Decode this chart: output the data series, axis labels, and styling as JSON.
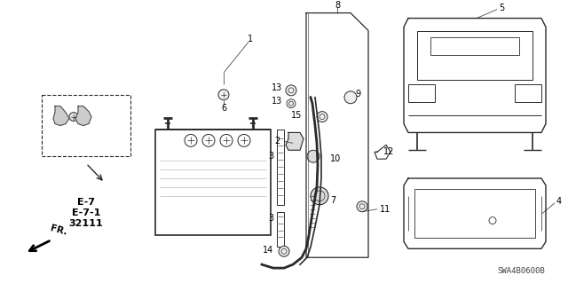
{
  "bg_color": "#ffffff",
  "fig_width": 6.4,
  "fig_height": 3.19,
  "dpi": 100,
  "line_color": "#2a2a2a",
  "text_color": "#000000",
  "label_fontsize": 7.0,
  "ref_fontsize": 8.0,
  "model_fontsize": 6.5,
  "model_code": "SWA4B0600B",
  "ref_labels": [
    "E-7",
    "E-7-1",
    "32111"
  ]
}
